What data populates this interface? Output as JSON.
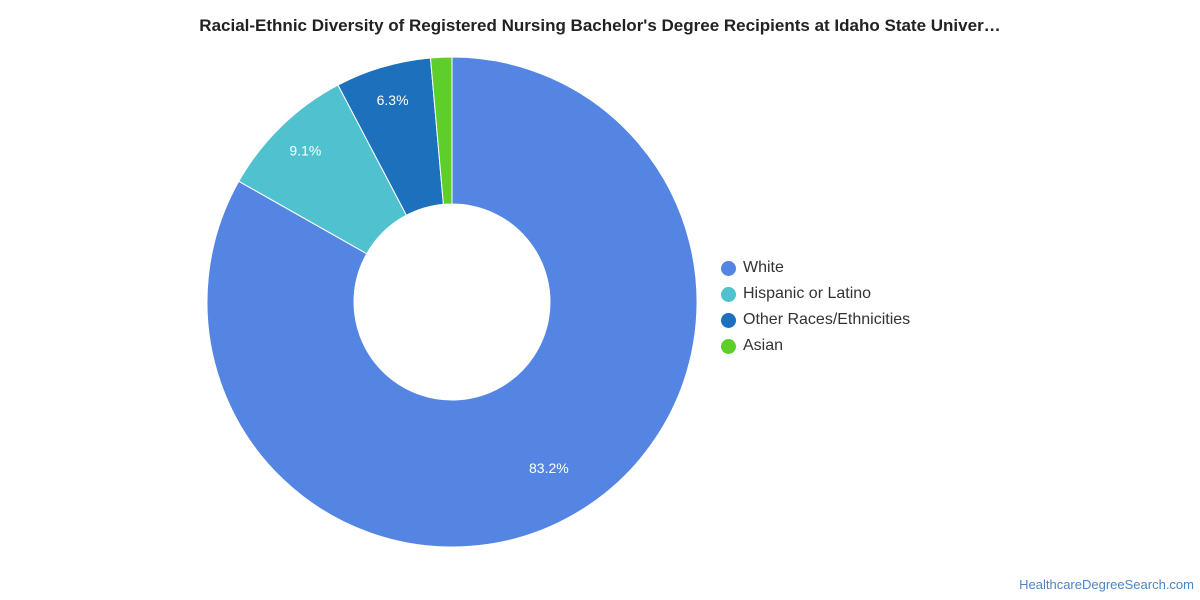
{
  "source_link": "HealthcareDegreeSearch.com",
  "chart_data": {
    "type": "pie",
    "variant": "donut",
    "title": "Racial-Ethnic Diversity of Registered Nursing Bachelor's Degree Recipients at Idaho State Univer…",
    "legend_position": "right",
    "slices": [
      {
        "name": "White",
        "value": 83.2,
        "label": "83.2%",
        "color": "#5485e2"
      },
      {
        "name": "Hispanic or Latino",
        "value": 9.1,
        "label": "9.1%",
        "color": "#50c1cf"
      },
      {
        "name": "Other Races/Ethnicities",
        "value": 6.3,
        "label": "6.3%",
        "color": "#1d70bc"
      },
      {
        "name": "Asian",
        "value": 1.4,
        "label": "",
        "color": "#5ecf2a"
      }
    ]
  }
}
